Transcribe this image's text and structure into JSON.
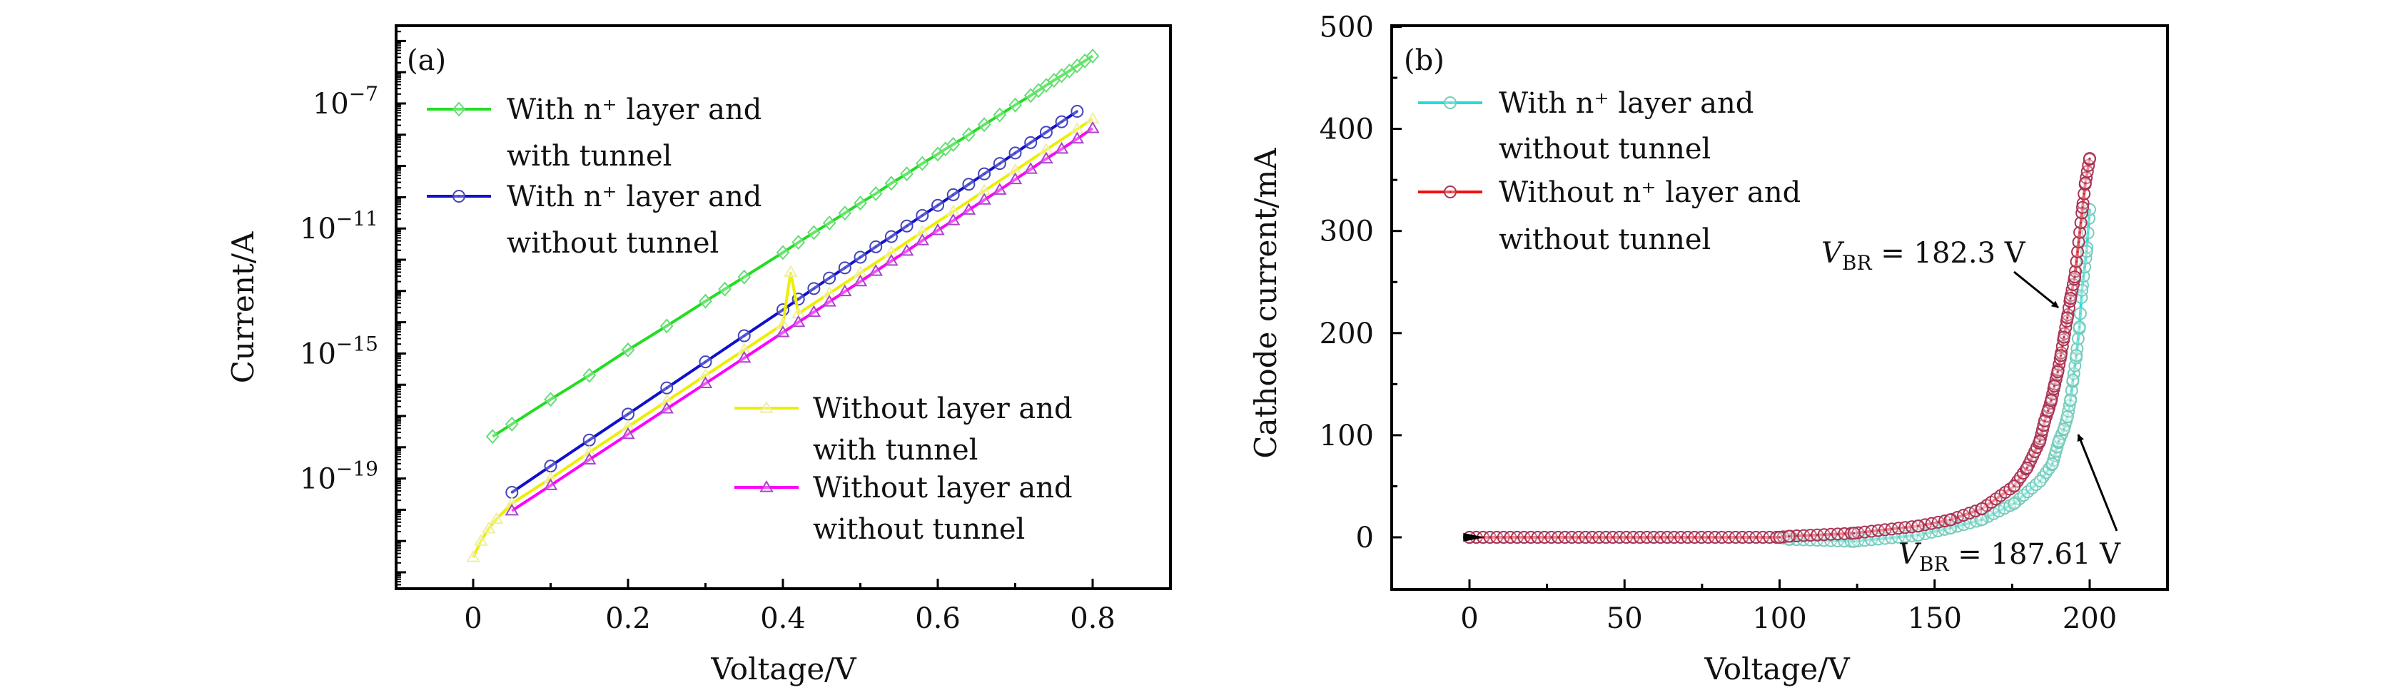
{
  "chart_data": [
    {
      "type": "line",
      "panel_label": "(a)",
      "xlabel": "Voltage/V",
      "ylabel": "Current/A",
      "xlim": [
        -0.1,
        0.9
      ],
      "ylim": [
        3.2e-23,
        3.2e-05
      ],
      "yscale": "log",
      "xticks": [
        0,
        0.2,
        0.4,
        0.6,
        0.8
      ],
      "xtick_labels": [
        "0",
        "0.2",
        "0.4",
        "0.6",
        "0.8"
      ],
      "yticks_exponents": [
        -7,
        -11,
        -15,
        -19
      ],
      "ytick_base": "10",
      "grid": false,
      "series": [
        {
          "name_lines": [
            "With n⁺ layer and",
            "with tunnel"
          ],
          "color": "#22dd22",
          "marker_color": "#66dd77",
          "marker": "diamond",
          "x": [
            0.025,
            0.05,
            0.1,
            0.15,
            0.2,
            0.25,
            0.3,
            0.325,
            0.35,
            0.4,
            0.42,
            0.44,
            0.46,
            0.48,
            0.5,
            0.52,
            0.54,
            0.56,
            0.58,
            0.6,
            0.61,
            0.62,
            0.64,
            0.66,
            0.68,
            0.7,
            0.72,
            0.73,
            0.74,
            0.75,
            0.76,
            0.77,
            0.78,
            0.79,
            0.8
          ],
          "y": [
            2.2e-18,
            5.5e-18,
            3.4e-17,
            2e-16,
            1.3e-15,
            7.6e-15,
            4.7e-14,
            1.15e-13,
            2.8e-13,
            1.7e-12,
            3.6e-12,
            7.4e-12,
            1.5e-11,
            3.1e-11,
            6.5e-11,
            1.3e-10,
            2.8e-10,
            5.6e-10,
            1.2e-09,
            2.4e-09,
            3.5e-09,
            4.9e-09,
            1e-08,
            2.1e-08,
            4.3e-08,
            8.9e-08,
            1.8e-07,
            2.6e-07,
            3.8e-07,
            5.5e-07,
            7.8e-07,
            1.1e-06,
            1.6e-06,
            2.3e-06,
            3.3e-06
          ]
        },
        {
          "name_lines": [
            "With n⁺ layer and",
            "without tunnel"
          ],
          "color": "#1010cc",
          "marker_color": "#4444bb",
          "marker": "circle-dot",
          "x": [
            0.05,
            0.1,
            0.15,
            0.2,
            0.25,
            0.3,
            0.35,
            0.4,
            0.42,
            0.44,
            0.46,
            0.48,
            0.5,
            0.52,
            0.54,
            0.56,
            0.58,
            0.6,
            0.62,
            0.64,
            0.66,
            0.68,
            0.7,
            0.72,
            0.74,
            0.76,
            0.78
          ],
          "y": [
            3.6e-20,
            2.5e-19,
            1.7e-18,
            1.15e-17,
            7.9e-17,
            5.4e-16,
            3.7e-15,
            2.5e-14,
            5.5e-14,
            1.2e-13,
            2.6e-13,
            5.5e-13,
            1.2e-12,
            2.6e-12,
            5.5e-12,
            1.2e-11,
            2.6e-11,
            5.5e-11,
            1.2e-10,
            2.6e-10,
            5.6e-10,
            1.2e-09,
            2.6e-09,
            5.6e-09,
            1.2e-08,
            2.6e-08,
            5.6e-08
          ]
        },
        {
          "name_lines": [
            "Without layer and",
            "with tunnel"
          ],
          "color": "#eeee00",
          "marker_color": "#eeeeaa",
          "marker": "triangle",
          "x": [
            0,
            0.01,
            0.02,
            0.03,
            0.05,
            0.1,
            0.15,
            0.2,
            0.25,
            0.3,
            0.35,
            0.4,
            0.41,
            0.42,
            0.46,
            0.5,
            0.54,
            0.58,
            0.62,
            0.66,
            0.7,
            0.74,
            0.78,
            0.8
          ],
          "y": [
            3e-22,
            1e-21,
            2.5e-21,
            5e-21,
            1.6e-20,
            1e-19,
            6.9e-19,
            4.6e-18,
            3e-17,
            2e-16,
            1.3e-15,
            8.7e-15,
            4e-13,
            1.9e-14,
            8.4e-14,
            3.8e-13,
            1.7e-12,
            7.8e-12,
            3.5e-11,
            1.6e-10,
            7.2e-10,
            3.3e-09,
            1.5e-08,
            3.2e-08
          ]
        },
        {
          "name_lines": [
            "Without layer and",
            "without tunnel"
          ],
          "color": "#ff00ff",
          "marker_color": "#aa44cc",
          "marker": "triangle",
          "x": [
            0.05,
            0.1,
            0.15,
            0.2,
            0.25,
            0.3,
            0.35,
            0.4,
            0.42,
            0.44,
            0.46,
            0.48,
            0.5,
            0.52,
            0.54,
            0.56,
            0.58,
            0.6,
            0.62,
            0.64,
            0.66,
            0.68,
            0.7,
            0.72,
            0.74,
            0.76,
            0.78,
            0.8
          ],
          "y": [
            9.3e-21,
            6e-20,
            4e-19,
            2.6e-18,
            1.7e-17,
            1.1e-16,
            7.2e-16,
            4.7e-15,
            1e-14,
            2.1e-14,
            4.5e-14,
            9.6e-14,
            2e-13,
            4.3e-13,
            9.1e-13,
            1.9e-12,
            4.1e-12,
            8.7e-12,
            1.8e-11,
            3.9e-11,
            8.2e-11,
            1.7e-10,
            3.7e-10,
            7.9e-10,
            1.7e-09,
            3.5e-09,
            7.4e-09,
            1.6e-08
          ]
        }
      ]
    },
    {
      "type": "line",
      "panel_label": "(b)",
      "xlabel": "Voltage/V",
      "ylabel": "Cathode current/mA",
      "xlim": [
        -25,
        225
      ],
      "ylim": [
        -50,
        500
      ],
      "xticks": [
        0,
        50,
        100,
        150,
        200
      ],
      "xtick_labels": [
        "0",
        "50",
        "100",
        "150",
        "200"
      ],
      "yticks": [
        0,
        100,
        200,
        300,
        400,
        500
      ],
      "ytick_labels": [
        "0",
        "100",
        "200",
        "300",
        "400",
        "500"
      ],
      "grid": false,
      "series": [
        {
          "name_lines": [
            "With n⁺ layer and",
            "without tunnel"
          ],
          "color": "#22dddd",
          "marker_color": "#77ccbb",
          "marker": "circle-dot",
          "x": [
            0,
            100,
            103,
            124,
            144.6,
            155,
            165,
            175.6,
            184,
            188,
            190,
            191.7,
            192.8,
            193.8,
            194.6,
            195.7,
            196.7,
            197.5,
            199,
            200
          ],
          "y": [
            0,
            0,
            -2,
            -4,
            2,
            9,
            17,
            33,
            55,
            72,
            94,
            106,
            118,
            134,
            154,
            178,
            206,
            242,
            280,
            321
          ]
        },
        {
          "name_lines": [
            "Without n⁺ layer and",
            "without tunnel"
          ],
          "color": "#ee1111",
          "marker_color": "#aa3355",
          "marker": "circle-dot",
          "x": [
            0,
            100,
            103,
            124,
            144.6,
            155,
            165.3,
            175.6,
            179.8,
            183.9,
            185.5,
            186.6,
            187.6,
            188.6,
            189.7,
            190.7,
            191.7,
            192.8,
            193.8,
            195.2,
            197.7,
            198.6,
            200
          ],
          "y": [
            0,
            0,
            1,
            4,
            11,
            17,
            28,
            50,
            68,
            94,
            114,
            124,
            134,
            148,
            162,
            178,
            196,
            215,
            234,
            255,
            323,
            347,
            371
          ]
        }
      ],
      "annotations": [
        {
          "symbol": "V",
          "subscript": "BR",
          "text": " = 182.3 V",
          "points_to": [
            191.5,
            215
          ]
        },
        {
          "symbol": "V",
          "subscript": "BR",
          "text": " = 187.61 V",
          "points_to": [
            193.5,
            100
          ]
        }
      ]
    }
  ]
}
